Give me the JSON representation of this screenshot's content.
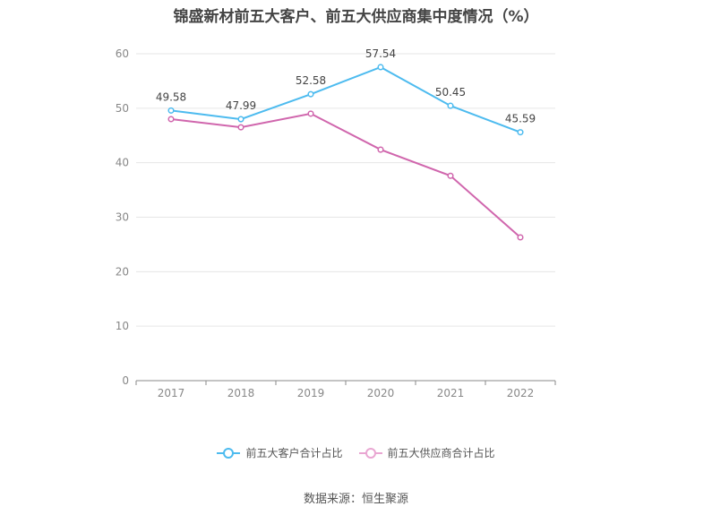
{
  "title": "锦盛新材前五大客户、前五大供应商集中度情况（%）",
  "source": "数据来源：恒生聚源",
  "chart_data": {
    "type": "line",
    "title": "锦盛新材前五大客户、前五大供应商集中度情况（%）",
    "xlabel": "",
    "ylabel": "",
    "categories": [
      "2017",
      "2018",
      "2019",
      "2020",
      "2021",
      "2022"
    ],
    "ylim": [
      0,
      60
    ],
    "yticks": [
      0,
      10,
      20,
      30,
      40,
      50,
      60
    ],
    "grid": true,
    "legend_position": "bottom",
    "series": [
      {
        "name": "前五大客户合计占比",
        "color": "#4dbbef",
        "values": [
          49.58,
          47.99,
          52.58,
          57.54,
          50.45,
          45.59
        ],
        "labels": [
          "49.58",
          "47.99",
          "52.58",
          "57.54",
          "50.45",
          "45.59"
        ],
        "show_labels": true
      },
      {
        "name": "前五大供应商合计占比",
        "color": "#d066ad",
        "values": [
          48.0,
          46.5,
          49.0,
          42.4,
          37.6,
          26.3
        ],
        "show_labels": false
      }
    ]
  }
}
